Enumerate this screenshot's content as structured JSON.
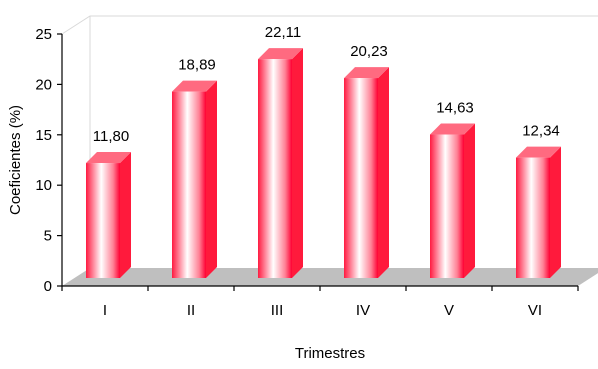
{
  "chart_data": {
    "type": "bar",
    "categories": [
      "I",
      "II",
      "III",
      "IV",
      "V",
      "VI"
    ],
    "values": [
      11.8,
      18.89,
      22.11,
      20.23,
      14.63,
      12.34
    ],
    "data_labels": [
      "11,80",
      "18,89",
      "22,11",
      "20,23",
      "14,63",
      "12,34"
    ],
    "ylim": [
      0,
      25
    ],
    "yticks": [
      0,
      5,
      10,
      15,
      20,
      25
    ],
    "xlabel": "Trimestres",
    "ylabel": "Coeficientes  (%)",
    "grid": false,
    "legend": "none",
    "style": "3d",
    "colors": {
      "bar_front_edge": "#ff0033",
      "bar_highlight": "#ffffff",
      "bar_side": "#ff1a3c",
      "bar_top": "#ff6a80",
      "floor": "#bfbfbf",
      "axis": "#000000",
      "wall_line": "#d9d9d9"
    }
  }
}
